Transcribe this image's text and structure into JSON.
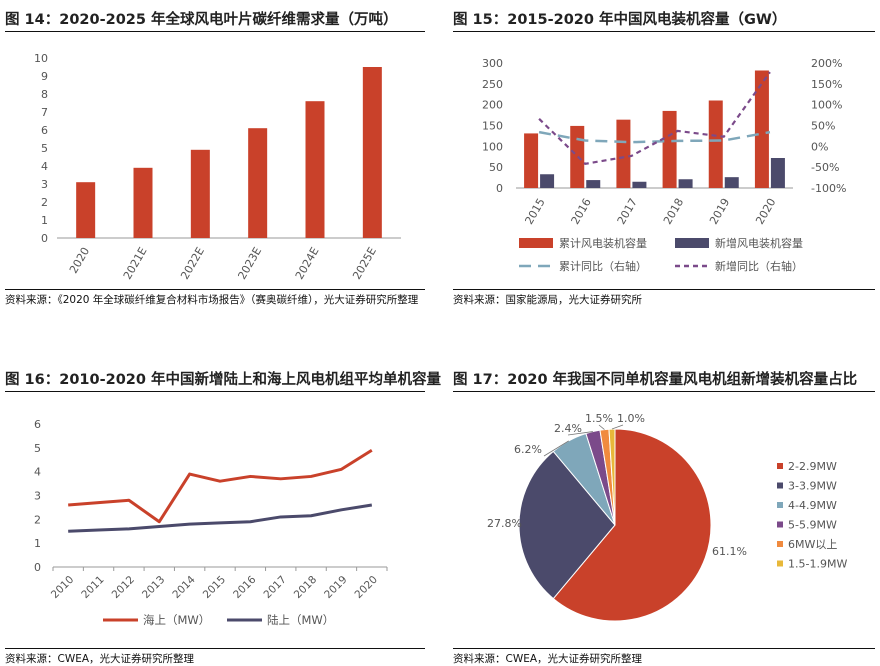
{
  "figures": [
    {
      "title": "图 14：2020-2025 年全球风电叶片碳纤维需求量（万吨）",
      "source": "资料来源：《2020 年全球碳纤维复合材料市场报告》（赛奥碳纤维），光大证券研究所整理"
    },
    {
      "title": "图 15：2015-2020 年中国风电装机容量（GW）",
      "source": "资料来源：国家能源局，光大证券研究所"
    },
    {
      "title": "图 16：2010-2020 年中国新增陆上和海上风电机组平均单机容量",
      "source": "资料来源：CWEA，光大证券研究所整理"
    },
    {
      "title": "图 17：2020 年我国不同单机容量风电机组新增装机容量占比",
      "source": "资料来源：CWEA，光大证券研究所整理"
    }
  ],
  "chart_data": [
    {
      "type": "bar",
      "categories": [
        "2020",
        "2021E",
        "2022E",
        "2023E",
        "2024E",
        "2025E"
      ],
      "values": [
        3.1,
        3.9,
        4.9,
        6.1,
        7.6,
        9.5
      ],
      "ylim": [
        0,
        10
      ],
      "yticks": [
        "0",
        "1",
        "2",
        "3",
        "4",
        "5",
        "6",
        "7",
        "8",
        "9",
        "10"
      ],
      "color": "#c9412a",
      "grid": false
    },
    {
      "type": "bar+line",
      "categories": [
        "2015",
        "2016",
        "2017",
        "2018",
        "2019",
        "2020"
      ],
      "series": [
        {
          "name": "累计风电装机容量",
          "kind": "bar",
          "axis": "left",
          "color": "#c9412a",
          "values": [
            131,
            149,
            164,
            185,
            210,
            282
          ]
        },
        {
          "name": "新增风电装机容量",
          "kind": "bar",
          "axis": "left",
          "color": "#4b4a6b",
          "values": [
            33,
            19,
            15,
            21,
            26,
            72
          ]
        },
        {
          "name": "累计同比（右轴）",
          "kind": "line",
          "axis": "right",
          "color": "#7fa7ba",
          "dash": "long",
          "values": [
            0.34,
            0.14,
            0.1,
            0.13,
            0.14,
            0.34
          ]
        },
        {
          "name": "新增同比（右轴）",
          "kind": "line",
          "axis": "right",
          "color": "#7b4a8a",
          "dash": "short",
          "values": [
            0.66,
            -0.42,
            -0.23,
            0.37,
            0.23,
            1.78
          ]
        }
      ],
      "ylim_left": [
        0,
        300
      ],
      "yticks_left": [
        "0",
        "50",
        "100",
        "150",
        "200",
        "250",
        "300"
      ],
      "ylim_right": [
        -1,
        2
      ],
      "yticks_right": [
        "-100%",
        "-50%",
        "0%",
        "50%",
        "100%",
        "150%",
        "200%"
      ],
      "legend_position": "bottom"
    },
    {
      "type": "line",
      "categories": [
        "2010",
        "2011",
        "2012",
        "2013",
        "2014",
        "2015",
        "2016",
        "2017",
        "2018",
        "2019",
        "2020"
      ],
      "series": [
        {
          "name": "海上（MW）",
          "color": "#c9412a",
          "values": [
            2.6,
            2.7,
            2.8,
            1.9,
            3.9,
            3.6,
            3.8,
            3.7,
            3.8,
            4.1,
            4.9
          ]
        },
        {
          "name": "陆上（MW）",
          "color": "#4b4a6b",
          "values": [
            1.5,
            1.55,
            1.6,
            1.7,
            1.8,
            1.85,
            1.9,
            2.1,
            2.15,
            2.4,
            2.6
          ]
        }
      ],
      "ylim": [
        0,
        6
      ],
      "yticks": [
        "0",
        "1",
        "2",
        "3",
        "4",
        "5",
        "6"
      ],
      "legend_position": "bottom"
    },
    {
      "type": "pie",
      "slices": [
        {
          "name": "2-2.9MW",
          "value": 61.1,
          "label": "61.1%",
          "color": "#c9412a"
        },
        {
          "name": "3-3.9MW",
          "value": 27.8,
          "label": "27.8%",
          "color": "#4b4a6b"
        },
        {
          "name": "4-4.9MW",
          "value": 6.2,
          "label": "6.2%",
          "color": "#7fa7ba"
        },
        {
          "name": "5-5.9MW",
          "value": 2.4,
          "label": "2.4%",
          "color": "#7b4a8a"
        },
        {
          "name": "6MW以上",
          "value": 1.5,
          "label": "1.5%",
          "color": "#f08a3e"
        },
        {
          "name": "1.5-1.9MW",
          "value": 1.0,
          "label": "1.0%",
          "color": "#e8b83a"
        }
      ],
      "legend_position": "right"
    }
  ]
}
